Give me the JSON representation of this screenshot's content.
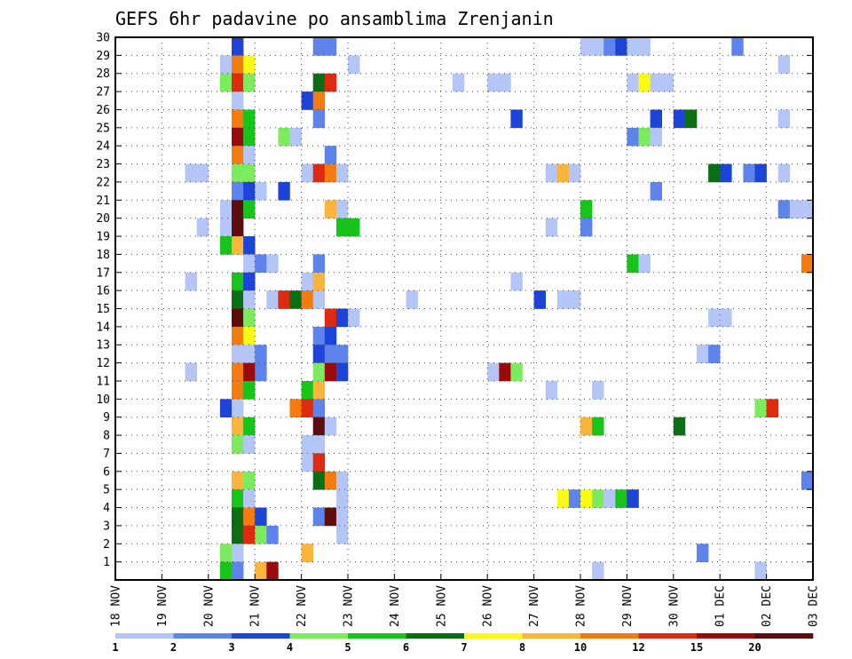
{
  "chart_data": {
    "type": "heatmap",
    "title": "GEFS 6hr padavine po ansamblima Zrenjanin",
    "x_tick_labels": [
      "18 NOV",
      "19 NOV",
      "20 NOV",
      "21 NOV",
      "22 NOV",
      "23 NOV",
      "24 NOV",
      "25 NOV",
      "26 NOV",
      "27 NOV",
      "28 NOV",
      "29 NOV",
      "30 NOV",
      "01 DEC",
      "02 DEC",
      "03 DEC"
    ],
    "y_tick_labels": [
      "1",
      "2",
      "3",
      "4",
      "5",
      "6",
      "7",
      "8",
      "9",
      "10",
      "11",
      "12",
      "13",
      "14",
      "15",
      "16",
      "17",
      "18",
      "19",
      "20",
      "21",
      "22",
      "23",
      "24",
      "25",
      "26",
      "27",
      "28",
      "29",
      "30"
    ],
    "xlim_days": [
      0,
      15
    ],
    "ylim_members": [
      0,
      30
    ],
    "time_step_hours": 6,
    "grid": "dotted",
    "colorbar": {
      "tick_labels": [
        "1",
        "2",
        "3",
        "4",
        "5",
        "6",
        "7",
        "8",
        "10",
        "12",
        "15",
        "20"
      ],
      "colors": [
        "#b3c6f7",
        "#5d83ec",
        "#1d44d8",
        "#7deb5e",
        "#16c41a",
        "#0a6e12",
        "#fafa14",
        "#fbb53a",
        "#f37b0f",
        "#df2a10",
        "#9b0a0a",
        "#5e0c0c"
      ]
    },
    "bins": [
      {
        "member": 30,
        "day": 2.5,
        "bin": 2
      },
      {
        "member": 30,
        "day": 4.25,
        "bin": 1
      },
      {
        "member": 30,
        "day": 4.5,
        "bin": 1
      },
      {
        "member": 30,
        "day": 10,
        "bin": 0
      },
      {
        "member": 30,
        "day": 10.25,
        "bin": 0
      },
      {
        "member": 30,
        "day": 10.5,
        "bin": 1
      },
      {
        "member": 30,
        "day": 10.75,
        "bin": 2
      },
      {
        "member": 30,
        "day": 11,
        "bin": 0
      },
      {
        "member": 30,
        "day": 11.25,
        "bin": 0
      },
      {
        "member": 30,
        "day": 13.25,
        "bin": 1
      },
      {
        "member": 29,
        "day": 2.25,
        "bin": 0
      },
      {
        "member": 29,
        "day": 2.5,
        "bin": 8
      },
      {
        "member": 29,
        "day": 2.75,
        "bin": 6
      },
      {
        "member": 29,
        "day": 5,
        "bin": 0
      },
      {
        "member": 29,
        "day": 14.25,
        "bin": 0
      },
      {
        "member": 28,
        "day": 2.25,
        "bin": 3
      },
      {
        "member": 28,
        "day": 2.5,
        "bin": 9
      },
      {
        "member": 28,
        "day": 2.75,
        "bin": 3
      },
      {
        "member": 28,
        "day": 4.25,
        "bin": 5
      },
      {
        "member": 28,
        "day": 4.5,
        "bin": 9
      },
      {
        "member": 28,
        "day": 7.25,
        "bin": 0
      },
      {
        "member": 28,
        "day": 8,
        "bin": 0
      },
      {
        "member": 28,
        "day": 8.25,
        "bin": 0
      },
      {
        "member": 28,
        "day": 11,
        "bin": 0
      },
      {
        "member": 28,
        "day": 11.25,
        "bin": 6
      },
      {
        "member": 28,
        "day": 11.5,
        "bin": 0
      },
      {
        "member": 28,
        "day": 11.75,
        "bin": 0
      },
      {
        "member": 27,
        "day": 2.5,
        "bin": 0
      },
      {
        "member": 27,
        "day": 4,
        "bin": 2
      },
      {
        "member": 27,
        "day": 4.25,
        "bin": 8
      },
      {
        "member": 26,
        "day": 2.5,
        "bin": 8
      },
      {
        "member": 26,
        "day": 2.75,
        "bin": 4
      },
      {
        "member": 26,
        "day": 4.25,
        "bin": 1
      },
      {
        "member": 26,
        "day": 8.5,
        "bin": 2
      },
      {
        "member": 26,
        "day": 11.5,
        "bin": 2
      },
      {
        "member": 26,
        "day": 12,
        "bin": 2
      },
      {
        "member": 26,
        "day": 12.25,
        "bin": 5
      },
      {
        "member": 26,
        "day": 14.25,
        "bin": 0
      },
      {
        "member": 25,
        "day": 2.5,
        "bin": 10
      },
      {
        "member": 25,
        "day": 2.75,
        "bin": 4
      },
      {
        "member": 25,
        "day": 3.5,
        "bin": 3
      },
      {
        "member": 25,
        "day": 3.75,
        "bin": 0
      },
      {
        "member": 25,
        "day": 11,
        "bin": 1
      },
      {
        "member": 25,
        "day": 11.25,
        "bin": 3
      },
      {
        "member": 25,
        "day": 11.5,
        "bin": 0
      },
      {
        "member": 24,
        "day": 2.5,
        "bin": 8
      },
      {
        "member": 24,
        "day": 2.75,
        "bin": 0
      },
      {
        "member": 24,
        "day": 4.5,
        "bin": 1
      },
      {
        "member": 23,
        "day": 1.5,
        "bin": 0
      },
      {
        "member": 23,
        "day": 1.75,
        "bin": 0
      },
      {
        "member": 23,
        "day": 2.5,
        "bin": 3
      },
      {
        "member": 23,
        "day": 2.75,
        "bin": 3
      },
      {
        "member": 23,
        "day": 4,
        "bin": 0
      },
      {
        "member": 23,
        "day": 4.25,
        "bin": 9
      },
      {
        "member": 23,
        "day": 4.5,
        "bin": 8
      },
      {
        "member": 23,
        "day": 4.75,
        "bin": 0
      },
      {
        "member": 23,
        "day": 9.25,
        "bin": 0
      },
      {
        "member": 23,
        "day": 9.5,
        "bin": 7
      },
      {
        "member": 23,
        "day": 9.75,
        "bin": 0
      },
      {
        "member": 23,
        "day": 12.75,
        "bin": 5
      },
      {
        "member": 23,
        "day": 13,
        "bin": 2
      },
      {
        "member": 23,
        "day": 13.5,
        "bin": 1
      },
      {
        "member": 23,
        "day": 13.75,
        "bin": 2
      },
      {
        "member": 23,
        "day": 14.25,
        "bin": 0
      },
      {
        "member": 22,
        "day": 2.5,
        "bin": 1
      },
      {
        "member": 22,
        "day": 2.75,
        "bin": 2
      },
      {
        "member": 22,
        "day": 3,
        "bin": 0
      },
      {
        "member": 22,
        "day": 3.5,
        "bin": 2
      },
      {
        "member": 22,
        "day": 11.5,
        "bin": 1
      },
      {
        "member": 21,
        "day": 2.25,
        "bin": 0
      },
      {
        "member": 21,
        "day": 2.5,
        "bin": 11
      },
      {
        "member": 21,
        "day": 2.75,
        "bin": 4
      },
      {
        "member": 21,
        "day": 4.5,
        "bin": 7
      },
      {
        "member": 21,
        "day": 4.75,
        "bin": 0
      },
      {
        "member": 21,
        "day": 10,
        "bin": 4
      },
      {
        "member": 21,
        "day": 14.25,
        "bin": 1
      },
      {
        "member": 21,
        "day": 14.5,
        "bin": 0
      },
      {
        "member": 21,
        "day": 14.75,
        "bin": 0
      },
      {
        "member": 20,
        "day": 1.75,
        "bin": 0
      },
      {
        "member": 20,
        "day": 2.25,
        "bin": 0
      },
      {
        "member": 20,
        "day": 2.5,
        "bin": 11
      },
      {
        "member": 20,
        "day": 4.75,
        "bin": 4
      },
      {
        "member": 20,
        "day": 5,
        "bin": 4
      },
      {
        "member": 20,
        "day": 9.25,
        "bin": 0
      },
      {
        "member": 20,
        "day": 10,
        "bin": 1
      },
      {
        "member": 19,
        "day": 2.25,
        "bin": 4
      },
      {
        "member": 19,
        "day": 2.5,
        "bin": 7
      },
      {
        "member": 19,
        "day": 2.75,
        "bin": 2
      },
      {
        "member": 18,
        "day": 2.75,
        "bin": 0
      },
      {
        "member": 18,
        "day": 3,
        "bin": 1
      },
      {
        "member": 18,
        "day": 3.25,
        "bin": 0
      },
      {
        "member": 18,
        "day": 4.25,
        "bin": 1
      },
      {
        "member": 18,
        "day": 11,
        "bin": 4
      },
      {
        "member": 18,
        "day": 11.25,
        "bin": 0
      },
      {
        "member": 18,
        "day": 14.75,
        "bin": 8
      },
      {
        "member": 17,
        "day": 1.5,
        "bin": 0
      },
      {
        "member": 17,
        "day": 2.5,
        "bin": 4
      },
      {
        "member": 17,
        "day": 2.75,
        "bin": 2
      },
      {
        "member": 17,
        "day": 4,
        "bin": 0
      },
      {
        "member": 17,
        "day": 4.25,
        "bin": 7
      },
      {
        "member": 17,
        "day": 8.5,
        "bin": 0
      },
      {
        "member": 16,
        "day": 2.5,
        "bin": 5
      },
      {
        "member": 16,
        "day": 2.75,
        "bin": 0
      },
      {
        "member": 16,
        "day": 3.25,
        "bin": 0
      },
      {
        "member": 16,
        "day": 3.5,
        "bin": 9
      },
      {
        "member": 16,
        "day": 3.75,
        "bin": 5
      },
      {
        "member": 16,
        "day": 4,
        "bin": 8
      },
      {
        "member": 16,
        "day": 4.25,
        "bin": 0
      },
      {
        "member": 16,
        "day": 6.25,
        "bin": 0
      },
      {
        "member": 16,
        "day": 9,
        "bin": 2
      },
      {
        "member": 16,
        "day": 9.5,
        "bin": 0
      },
      {
        "member": 16,
        "day": 9.75,
        "bin": 0
      },
      {
        "member": 15,
        "day": 2.5,
        "bin": 11
      },
      {
        "member": 15,
        "day": 2.75,
        "bin": 3
      },
      {
        "member": 15,
        "day": 4.5,
        "bin": 9
      },
      {
        "member": 15,
        "day": 4.75,
        "bin": 2
      },
      {
        "member": 15,
        "day": 5,
        "bin": 0
      },
      {
        "member": 15,
        "day": 12.75,
        "bin": 0
      },
      {
        "member": 15,
        "day": 13,
        "bin": 0
      },
      {
        "member": 14,
        "day": 2.5,
        "bin": 8
      },
      {
        "member": 14,
        "day": 2.75,
        "bin": 6
      },
      {
        "member": 14,
        "day": 4.25,
        "bin": 1
      },
      {
        "member": 14,
        "day": 4.5,
        "bin": 2
      },
      {
        "member": 13,
        "day": 2.5,
        "bin": 0
      },
      {
        "member": 13,
        "day": 2.75,
        "bin": 0
      },
      {
        "member": 13,
        "day": 3,
        "bin": 1
      },
      {
        "member": 13,
        "day": 4.25,
        "bin": 2
      },
      {
        "member": 13,
        "day": 4.5,
        "bin": 1
      },
      {
        "member": 13,
        "day": 4.75,
        "bin": 1
      },
      {
        "member": 13,
        "day": 12.5,
        "bin": 0
      },
      {
        "member": 13,
        "day": 12.75,
        "bin": 1
      },
      {
        "member": 12,
        "day": 1.5,
        "bin": 0
      },
      {
        "member": 12,
        "day": 2.5,
        "bin": 8
      },
      {
        "member": 12,
        "day": 2.75,
        "bin": 10
      },
      {
        "member": 12,
        "day": 3,
        "bin": 1
      },
      {
        "member": 12,
        "day": 4.25,
        "bin": 3
      },
      {
        "member": 12,
        "day": 4.5,
        "bin": 10
      },
      {
        "member": 12,
        "day": 4.75,
        "bin": 2
      },
      {
        "member": 12,
        "day": 8,
        "bin": 0
      },
      {
        "member": 12,
        "day": 8.25,
        "bin": 10
      },
      {
        "member": 12,
        "day": 8.5,
        "bin": 3
      },
      {
        "member": 11,
        "day": 2.5,
        "bin": 8
      },
      {
        "member": 11,
        "day": 2.75,
        "bin": 4
      },
      {
        "member": 11,
        "day": 4,
        "bin": 4
      },
      {
        "member": 11,
        "day": 4.25,
        "bin": 7
      },
      {
        "member": 11,
        "day": 9.25,
        "bin": 0
      },
      {
        "member": 11,
        "day": 10.25,
        "bin": 0
      },
      {
        "member": 10,
        "day": 2.25,
        "bin": 2
      },
      {
        "member": 10,
        "day": 2.5,
        "bin": 0
      },
      {
        "member": 10,
        "day": 3.75,
        "bin": 8
      },
      {
        "member": 10,
        "day": 4,
        "bin": 9
      },
      {
        "member": 10,
        "day": 4.25,
        "bin": 1
      },
      {
        "member": 10,
        "day": 13.75,
        "bin": 3
      },
      {
        "member": 10,
        "day": 14,
        "bin": 9
      },
      {
        "member": 9,
        "day": 2.5,
        "bin": 7
      },
      {
        "member": 9,
        "day": 2.75,
        "bin": 4
      },
      {
        "member": 9,
        "day": 4.25,
        "bin": 11
      },
      {
        "member": 9,
        "day": 4.5,
        "bin": 0
      },
      {
        "member": 9,
        "day": 10,
        "bin": 7
      },
      {
        "member": 9,
        "day": 10.25,
        "bin": 4
      },
      {
        "member": 9,
        "day": 12,
        "bin": 5
      },
      {
        "member": 8,
        "day": 2.5,
        "bin": 3
      },
      {
        "member": 8,
        "day": 2.75,
        "bin": 0
      },
      {
        "member": 8,
        "day": 4,
        "bin": 0
      },
      {
        "member": 8,
        "day": 4.25,
        "bin": 0
      },
      {
        "member": 7,
        "day": 4,
        "bin": 0
      },
      {
        "member": 7,
        "day": 4.25,
        "bin": 9
      },
      {
        "member": 6,
        "day": 2.5,
        "bin": 7
      },
      {
        "member": 6,
        "day": 2.75,
        "bin": 3
      },
      {
        "member": 6,
        "day": 4.25,
        "bin": 5
      },
      {
        "member": 6,
        "day": 4.5,
        "bin": 8
      },
      {
        "member": 6,
        "day": 4.75,
        "bin": 0
      },
      {
        "member": 6,
        "day": 14.75,
        "bin": 1
      },
      {
        "member": 5,
        "day": 2.5,
        "bin": 4
      },
      {
        "member": 5,
        "day": 2.75,
        "bin": 0
      },
      {
        "member": 5,
        "day": 4.75,
        "bin": 0
      },
      {
        "member": 5,
        "day": 9.5,
        "bin": 6
      },
      {
        "member": 5,
        "day": 9.75,
        "bin": 1
      },
      {
        "member": 5,
        "day": 10,
        "bin": 6
      },
      {
        "member": 5,
        "day": 10.25,
        "bin": 3
      },
      {
        "member": 5,
        "day": 10.5,
        "bin": 0
      },
      {
        "member": 5,
        "day": 10.75,
        "bin": 4
      },
      {
        "member": 5,
        "day": 11,
        "bin": 2
      },
      {
        "member": 4,
        "day": 2.5,
        "bin": 5
      },
      {
        "member": 4,
        "day": 2.75,
        "bin": 8
      },
      {
        "member": 4,
        "day": 3,
        "bin": 2
      },
      {
        "member": 4,
        "day": 4.25,
        "bin": 1
      },
      {
        "member": 4,
        "day": 4.5,
        "bin": 11
      },
      {
        "member": 4,
        "day": 4.75,
        "bin": 0
      },
      {
        "member": 3,
        "day": 2.5,
        "bin": 5
      },
      {
        "member": 3,
        "day": 2.75,
        "bin": 9
      },
      {
        "member": 3,
        "day": 3,
        "bin": 3
      },
      {
        "member": 3,
        "day": 3.25,
        "bin": 1
      },
      {
        "member": 3,
        "day": 4.75,
        "bin": 0
      },
      {
        "member": 2,
        "day": 2.25,
        "bin": 3
      },
      {
        "member": 2,
        "day": 2.5,
        "bin": 0
      },
      {
        "member": 2,
        "day": 4,
        "bin": 7
      },
      {
        "member": 2,
        "day": 12.5,
        "bin": 1
      },
      {
        "member": 1,
        "day": 2.25,
        "bin": 4
      },
      {
        "member": 1,
        "day": 2.5,
        "bin": 1
      },
      {
        "member": 1,
        "day": 3,
        "bin": 7
      },
      {
        "member": 1,
        "day": 3.25,
        "bin": 10
      },
      {
        "member": 1,
        "day": 10.25,
        "bin": 0
      },
      {
        "member": 1,
        "day": 13.75,
        "bin": 0
      }
    ]
  }
}
